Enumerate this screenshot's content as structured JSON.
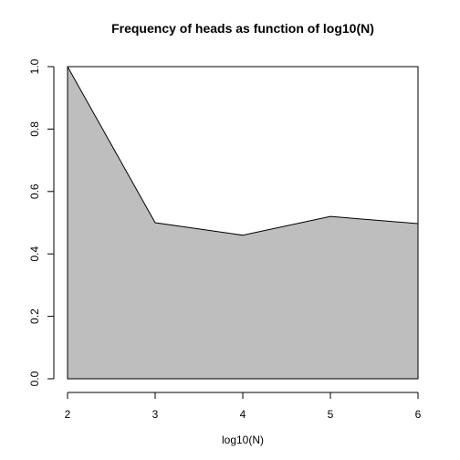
{
  "chart_data": {
    "type": "area",
    "title": "Frequency of heads as function of log10(N)",
    "xlabel": "log10(N)",
    "ylabel": "",
    "x": [
      2,
      3,
      4,
      5,
      6
    ],
    "series": [
      {
        "values": [
          1.0,
          0.5,
          0.46,
          0.52,
          0.497
        ]
      }
    ],
    "xlim": [
      2,
      6
    ],
    "ylim": [
      0,
      1
    ],
    "xticks": [
      "2",
      "3",
      "4",
      "5",
      "6"
    ],
    "yticks": [
      "0.0",
      "0.2",
      "0.4",
      "0.6",
      "0.8",
      "1.0"
    ],
    "grid": false,
    "legend": "none",
    "colors": {
      "fill": "#bebebe",
      "line": "#000000"
    }
  }
}
